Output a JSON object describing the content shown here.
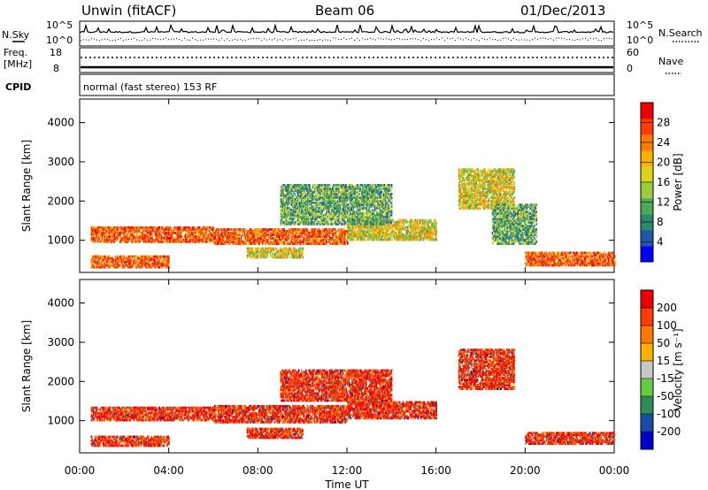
{
  "header": {
    "station": "Unwin (fitACF)",
    "beam": "Beam 06",
    "date": "01/Dec/2013"
  },
  "strip": {
    "nsky_label": "N.Sky",
    "nsearch_label": "N.Search",
    "noise_ticks": [
      "10^5",
      "10^0"
    ],
    "freq_label": "Freq.",
    "freq_unit": "[MHz]",
    "freq_ticks": [
      "18",
      "8"
    ],
    "nave_label": "Nave",
    "nave_ticks": [
      "60",
      "0"
    ],
    "cpid_label": "CPID",
    "cpid_text": "normal (fast stereo) 153 RF"
  },
  "chart_data": [
    {
      "type": "heatmap",
      "title": "",
      "xlabel": "Time UT",
      "ylabel": "Slant Range [km]",
      "xticks": [
        "00:00",
        "04:00",
        "08:00",
        "12:00",
        "16:00",
        "20:00",
        "00:00"
      ],
      "xlim_hours": [
        0,
        24
      ],
      "ylim": [
        180,
        4600
      ],
      "yticks": [
        1000,
        2000,
        3000,
        4000
      ],
      "colorbar": {
        "label": "Power [dB]",
        "ticks": [
          "28",
          "24",
          "20",
          "16",
          "12",
          "8",
          "4"
        ],
        "colors": [
          "#0000ff",
          "#1e58a8",
          "#2a8a6e",
          "#4caa55",
          "#9ccc3e",
          "#ddd21e",
          "#ffb000",
          "#ff7a00",
          "#ff3c00",
          "#ee0000"
        ]
      },
      "echo_bands": [
        {
          "t_start": 0.5,
          "t_end": 6.0,
          "range_low": 950,
          "range_high": 1350,
          "level": "high"
        },
        {
          "t_start": 6.0,
          "t_end": 12.0,
          "range_low": 900,
          "range_high": 1300,
          "level": "high"
        },
        {
          "t_start": 12.0,
          "t_end": 16.0,
          "range_low": 1000,
          "range_high": 1500,
          "level": "medium"
        },
        {
          "t_start": 0.5,
          "t_end": 4.0,
          "range_low": 300,
          "range_high": 600,
          "level": "high"
        },
        {
          "t_start": 7.5,
          "t_end": 10.0,
          "range_low": 550,
          "range_high": 800,
          "level": "medium"
        },
        {
          "t_start": 9.0,
          "t_end": 14.0,
          "range_low": 1400,
          "range_high": 2400,
          "level": "low"
        },
        {
          "t_start": 17.0,
          "t_end": 19.5,
          "range_low": 1800,
          "range_high": 2800,
          "level": "medium"
        },
        {
          "t_start": 18.5,
          "t_end": 20.5,
          "range_low": 900,
          "range_high": 1900,
          "level": "low"
        },
        {
          "t_start": 20.0,
          "t_end": 24.0,
          "range_low": 350,
          "range_high": 700,
          "level": "high"
        }
      ]
    },
    {
      "type": "heatmap",
      "title": "",
      "xlabel": "Time UT",
      "ylabel": "Slant Range [km]",
      "xticks": [
        "00:00",
        "04:00",
        "08:00",
        "12:00",
        "16:00",
        "20:00",
        "00:00"
      ],
      "xlim_hours": [
        0,
        24
      ],
      "ylim": [
        180,
        4600
      ],
      "yticks": [
        1000,
        2000,
        3000,
        4000
      ],
      "colorbar": {
        "label": "Velocity [m s⁻¹]",
        "ticks": [
          "200",
          "100",
          "50",
          "15",
          "-15",
          "-50",
          "-100",
          "-200"
        ],
        "colors": [
          "#0000cc",
          "#1a4da8",
          "#2e8a58",
          "#66cc44",
          "#c8c8c8",
          "#ffb000",
          "#ff7a00",
          "#ff3c00",
          "#ee0000"
        ]
      },
      "echo_bands": [
        {
          "t_start": 0.5,
          "t_end": 6.0,
          "range_low": 1000,
          "range_high": 1350,
          "level": "negative"
        },
        {
          "t_start": 6.0,
          "t_end": 12.0,
          "range_low": 950,
          "range_high": 1400,
          "level": "negative"
        },
        {
          "t_start": 12.0,
          "t_end": 16.0,
          "range_low": 1050,
          "range_high": 1500,
          "level": "negative"
        },
        {
          "t_start": 0.5,
          "t_end": 4.0,
          "range_low": 350,
          "range_high": 600,
          "level": "negative"
        },
        {
          "t_start": 7.5,
          "t_end": 10.0,
          "range_low": 550,
          "range_high": 800,
          "level": "negative"
        },
        {
          "t_start": 9.0,
          "t_end": 14.0,
          "range_low": 1500,
          "range_high": 2300,
          "level": "negative"
        },
        {
          "t_start": 17.0,
          "t_end": 19.5,
          "range_low": 1800,
          "range_high": 2800,
          "level": "negative"
        },
        {
          "t_start": 20.0,
          "t_end": 24.0,
          "range_low": 400,
          "range_high": 700,
          "level": "negative"
        }
      ]
    }
  ]
}
